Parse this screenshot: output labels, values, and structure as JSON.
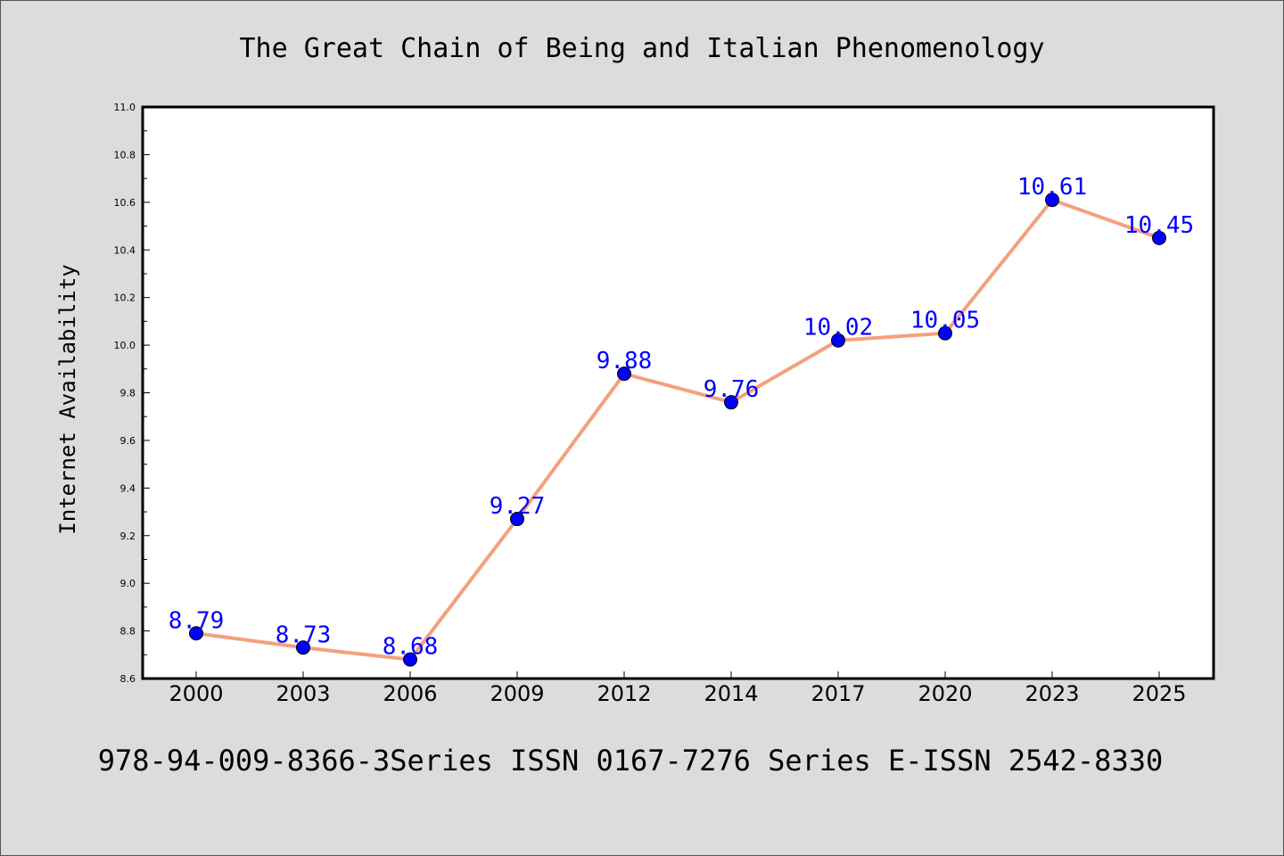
{
  "chart_data": {
    "type": "line",
    "title": "The Great Chain of Being and Italian Phenomenology",
    "xlabel": "",
    "ylabel": "Internet Availability",
    "categories": [
      "2000",
      "2003",
      "2006",
      "2009",
      "2012",
      "2014",
      "2017",
      "2020",
      "2023",
      "2025"
    ],
    "values": [
      8.79,
      8.73,
      8.68,
      9.27,
      9.88,
      9.76,
      10.02,
      10.05,
      10.61,
      10.45
    ],
    "data_labels": [
      "8.79",
      "8.73",
      "8.68",
      "9.27",
      "9.88",
      "9.76",
      "10.02",
      "10.05",
      "10.61",
      "10.45"
    ],
    "ylim": [
      8.6,
      11.0
    ],
    "yticks": [
      "8.6",
      "8.8",
      "9.0",
      "9.2",
      "9.4",
      "9.6",
      "9.8",
      "10.0",
      "10.2",
      "10.4",
      "10.6",
      "10.8",
      "11.0"
    ],
    "grid": false,
    "colors": {
      "line": "#f4a07e",
      "marker": "#0000ff",
      "label": "#0000ff",
      "background": "#dcdcdc",
      "plot_background": "#ffffff"
    }
  },
  "footer": "978-94-009-8366-3Series ISSN 0167-7276 Series E-ISSN 2542-8330"
}
